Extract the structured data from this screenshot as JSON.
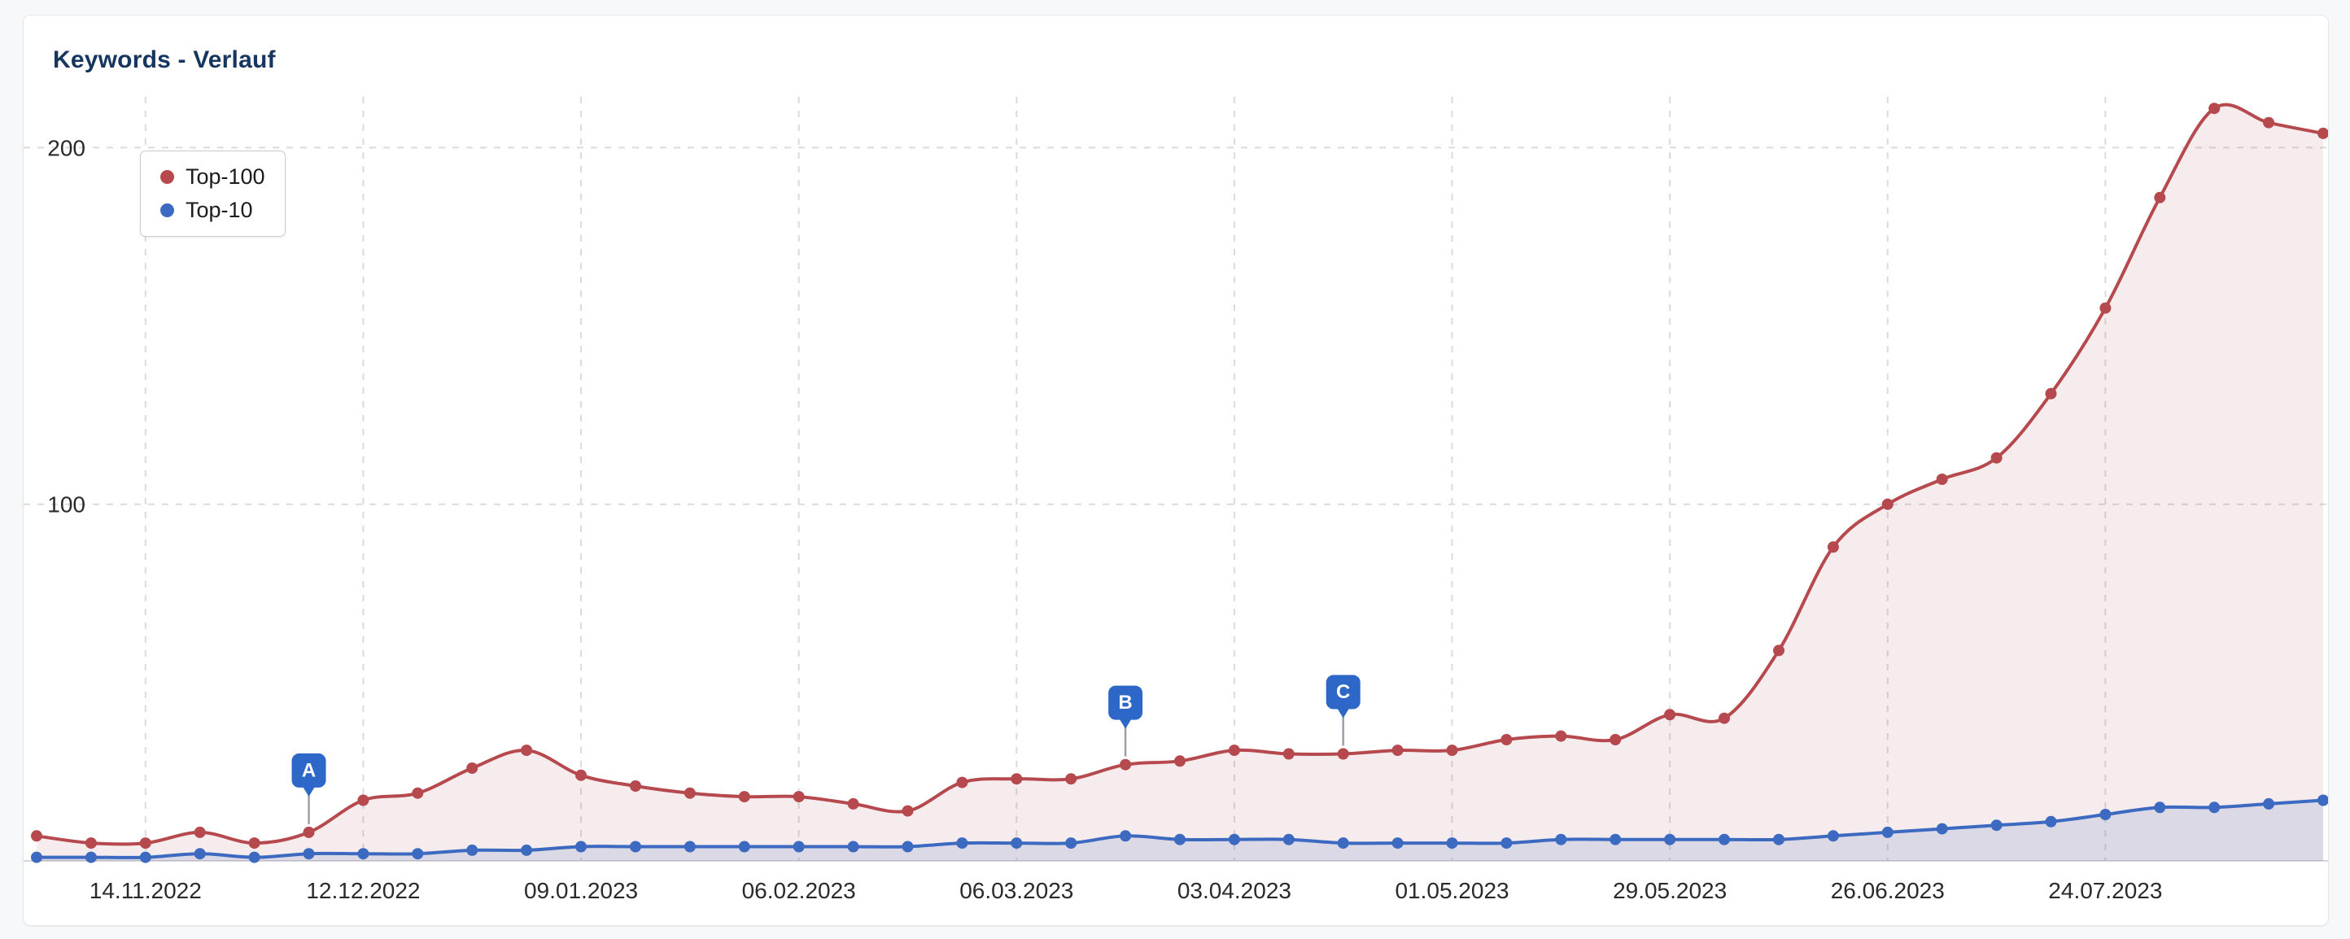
{
  "card": {
    "title": "Keywords - Verlauf"
  },
  "chart_data": {
    "type": "area",
    "title": "Keywords - Verlauf",
    "grid": "dashed",
    "legend_position": "top-left",
    "x": [
      "31.10.2022",
      "07.11.2022",
      "14.11.2022",
      "21.11.2022",
      "28.11.2022",
      "05.12.2022",
      "12.12.2022",
      "19.12.2022",
      "26.12.2022",
      "02.01.2023",
      "09.01.2023",
      "16.01.2023",
      "23.01.2023",
      "30.01.2023",
      "06.02.2023",
      "13.02.2023",
      "20.02.2023",
      "27.02.2023",
      "06.03.2023",
      "13.03.2023",
      "20.03.2023",
      "27.03.2023",
      "03.04.2023",
      "10.04.2023",
      "17.04.2023",
      "24.04.2023",
      "01.05.2023",
      "08.05.2023",
      "15.05.2023",
      "22.05.2023",
      "29.05.2023",
      "05.06.2023",
      "12.06.2023",
      "19.06.2023",
      "26.06.2023",
      "03.07.2023",
      "10.07.2023",
      "17.07.2023",
      "24.07.2023",
      "31.07.2023",
      "07.08.2023",
      "14.08.2023",
      "21.08.2023"
    ],
    "tick_indices": [
      2,
      6,
      10,
      14,
      18,
      22,
      26,
      30,
      34,
      38
    ],
    "tick_labels": [
      "14.11.2022",
      "12.12.2022",
      "09.01.2023",
      "06.02.2023",
      "06.03.2023",
      "03.04.2023",
      "01.05.2023",
      "29.05.2023",
      "26.06.2023",
      "24.07.2023"
    ],
    "y_ticks": [
      100,
      200
    ],
    "ylim": [
      0,
      223
    ],
    "series": [
      {
        "name": "Top-100",
        "color": "#b5494d",
        "fill": "rgba(181,73,77,0.10)",
        "values": [
          7,
          5,
          5,
          8,
          5,
          8,
          17,
          19,
          26,
          31,
          24,
          21,
          19,
          18,
          18,
          16,
          14,
          22,
          23,
          23,
          27,
          28,
          31,
          30,
          30,
          31,
          31,
          34,
          35,
          34,
          41,
          40,
          59,
          88,
          100,
          107,
          113,
          131,
          155,
          186,
          211,
          207,
          204
        ]
      },
      {
        "name": "Top-10",
        "color": "#3c6ac1",
        "fill": "rgba(60,106,193,0.14)",
        "values": [
          1,
          1,
          1,
          2,
          1,
          2,
          2,
          2,
          3,
          3,
          4,
          4,
          4,
          4,
          4,
          4,
          4,
          5,
          5,
          5,
          7,
          6,
          6,
          6,
          5,
          5,
          5,
          5,
          6,
          6,
          6,
          6,
          6,
          7,
          8,
          9,
          10,
          11,
          13,
          15,
          15,
          16,
          17
        ]
      }
    ],
    "markers": [
      {
        "label": "A",
        "index": 5
      },
      {
        "label": "B",
        "index": 20
      },
      {
        "label": "C",
        "index": 24
      }
    ],
    "marker_color": "#2d67c8"
  },
  "colors": {
    "page_bg": "#f7f8fa",
    "card_bg": "#ffffff",
    "card_border": "#e4e7ea",
    "grid": "#d9dbde",
    "axis_text": "#2a2a2a",
    "title_text": "#16355f",
    "marker_stem": "#9ca1a8",
    "legend_border": "#c9cdd2"
  }
}
